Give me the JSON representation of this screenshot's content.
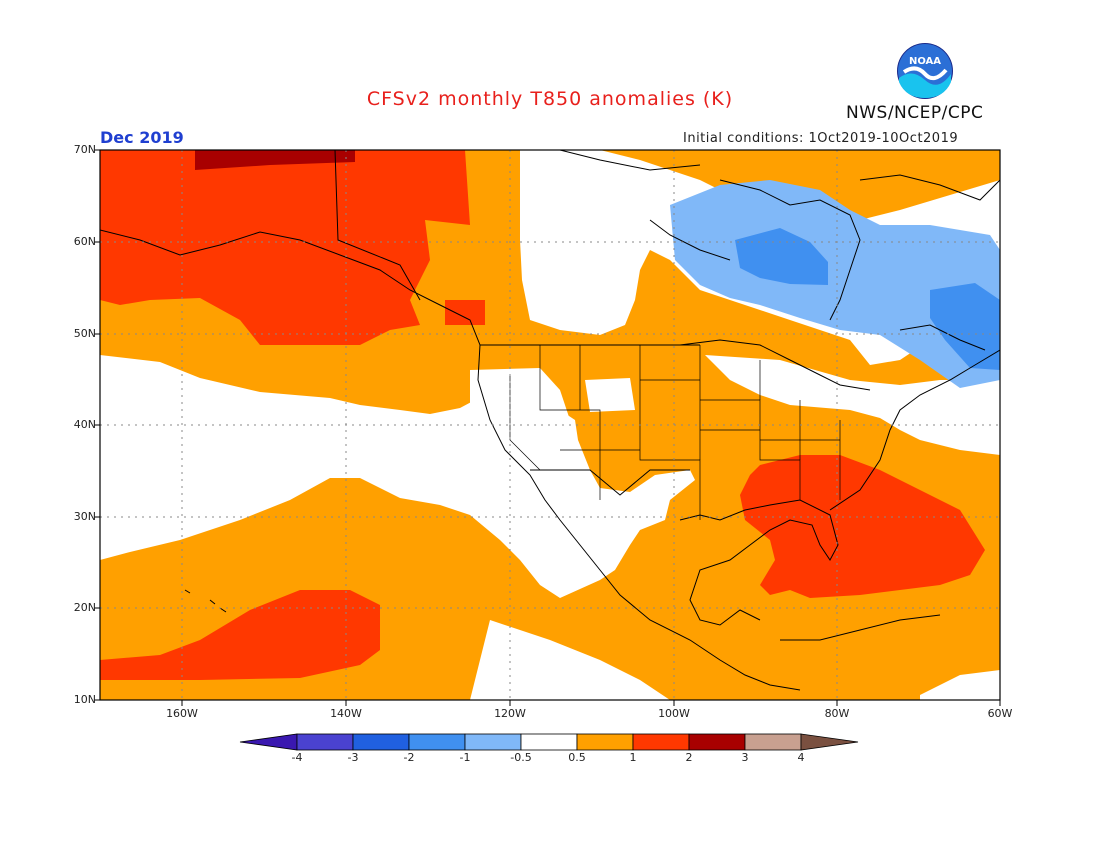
{
  "header": {
    "title": "CFSv2 monthly T850 anomalies (K)",
    "agency": "NWS/NCEP/CPC",
    "logo_text": "NOAA",
    "month": "Dec 2019",
    "initial_conditions": "Initial conditions: 1Oct2019-10Oct2019"
  },
  "axes": {
    "lat_labels": [
      "70N",
      "60N",
      "50N",
      "40N",
      "30N",
      "20N",
      "10N"
    ],
    "lon_labels": [
      "160W",
      "140W",
      "120W",
      "100W",
      "80W",
      "60W"
    ],
    "lat_range": [
      10,
      70
    ],
    "lon_range": [
      -170,
      -60
    ]
  },
  "colorbar": {
    "labels": [
      "-4",
      "-3",
      "-2",
      "-1",
      "-0.5",
      "0.5",
      "1",
      "2",
      "3",
      "4"
    ],
    "colors": [
      "#3a18b0",
      "#4a42d0",
      "#2060e0",
      "#4090f0",
      "#80b8f8",
      "#ffffff",
      "#ffa000",
      "#ff3800",
      "#a80000",
      "#c8a090",
      "#7a5040"
    ]
  },
  "palette": {
    "warm1": "#ffa000",
    "warm2": "#ff3800",
    "warm3": "#a80000",
    "cool1": "#80b8f8",
    "cool2": "#4090f0",
    "cool3": "#2a6ae8",
    "title_color": "#e8201c",
    "month_color": "#1f3fd0"
  }
}
